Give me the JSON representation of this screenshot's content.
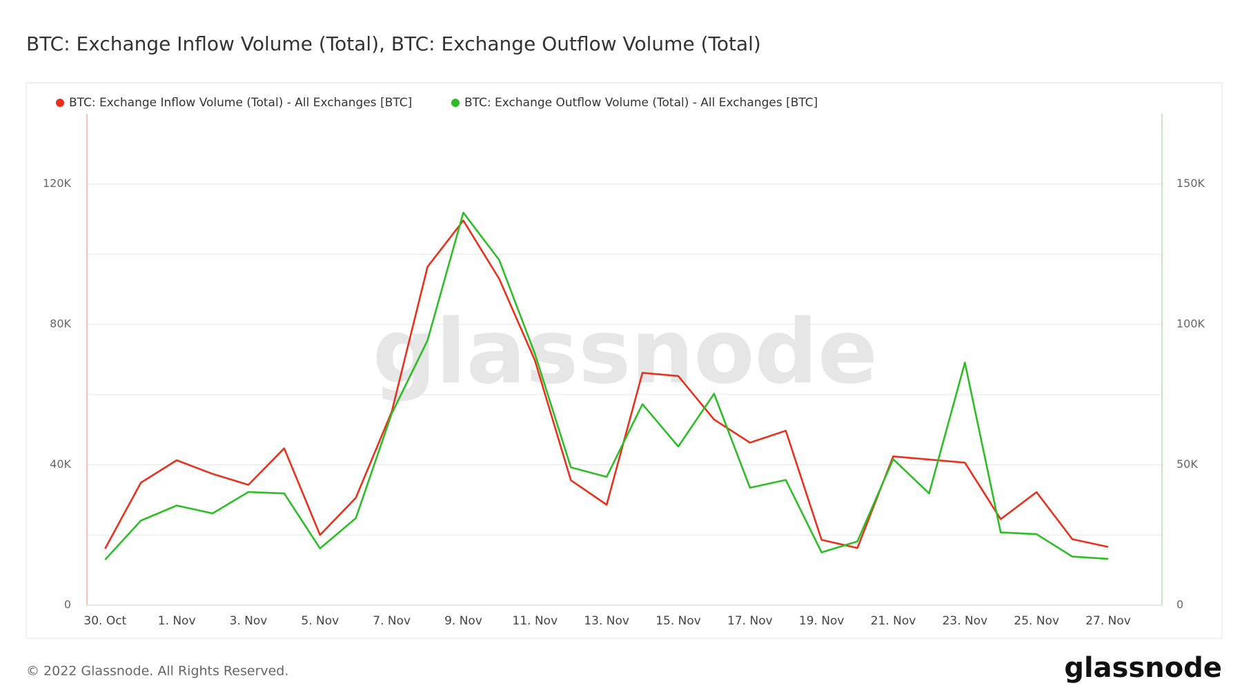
{
  "chart_data": {
    "type": "line",
    "title": "BTC: Exchange Inflow Volume (Total), BTC: Exchange Outflow Volume (Total)",
    "watermark": "glassnode",
    "footer": "© 2022 Glassnode. All Rights Reserved.",
    "logo": "glassnode",
    "categories": [
      "30. Oct",
      null,
      "1. Nov",
      null,
      "3. Nov",
      null,
      "5. Nov",
      null,
      "7. Nov",
      null,
      "9. Nov",
      null,
      "11. Nov",
      null,
      "13. Nov",
      null,
      "15. Nov",
      null,
      "17. Nov",
      null,
      "19. Nov",
      null,
      "21. Nov",
      null,
      "23. Nov",
      null,
      "25. Nov",
      null,
      "27. Nov"
    ],
    "series": [
      {
        "name": "BTC: Exchange Inflow Volume (Total) - All Exchanges [BTC]",
        "color": "#e8301c",
        "axis": "y",
        "values": [
          16100,
          34900,
          41300,
          37400,
          34300,
          44700,
          20000,
          30600,
          55100,
          96400,
          109600,
          93000,
          69700,
          35600,
          28600,
          66200,
          65300,
          52900,
          46300,
          49700,
          18600,
          16300,
          42400,
          41500,
          40600,
          24500,
          32200,
          18800,
          16600
        ]
      },
      {
        "name": "BTC: Exchange Outflow Volume (Total) - All Exchanges [BTC]",
        "color": "#2cbd25",
        "axis": "y2",
        "values": [
          16200,
          30100,
          35500,
          32700,
          40300,
          39800,
          20200,
          31000,
          68200,
          94300,
          139800,
          123000,
          89500,
          49100,
          45700,
          71600,
          56500,
          75300,
          41800,
          44600,
          18800,
          22700,
          52000,
          39800,
          86400,
          25900,
          25300,
          17300,
          16500
        ]
      }
    ],
    "ylim": [
      0,
      140000
    ],
    "yticks": [
      0,
      {
        "value": 40000,
        "label": "40K"
      },
      {
        "value": 80000,
        "label": "80K"
      },
      {
        "value": 120000,
        "label": "120K"
      }
    ],
    "ygrid": [
      0,
      20000,
      40000,
      60000,
      80000,
      100000,
      120000
    ],
    "y2lim": [
      0,
      175000
    ],
    "y2ticks": [
      0,
      {
        "value": 50000,
        "label": "50K"
      },
      {
        "value": 100000,
        "label": "100K"
      },
      {
        "value": 150000,
        "label": "150K"
      }
    ],
    "grid": true,
    "legend": "top-left"
  }
}
